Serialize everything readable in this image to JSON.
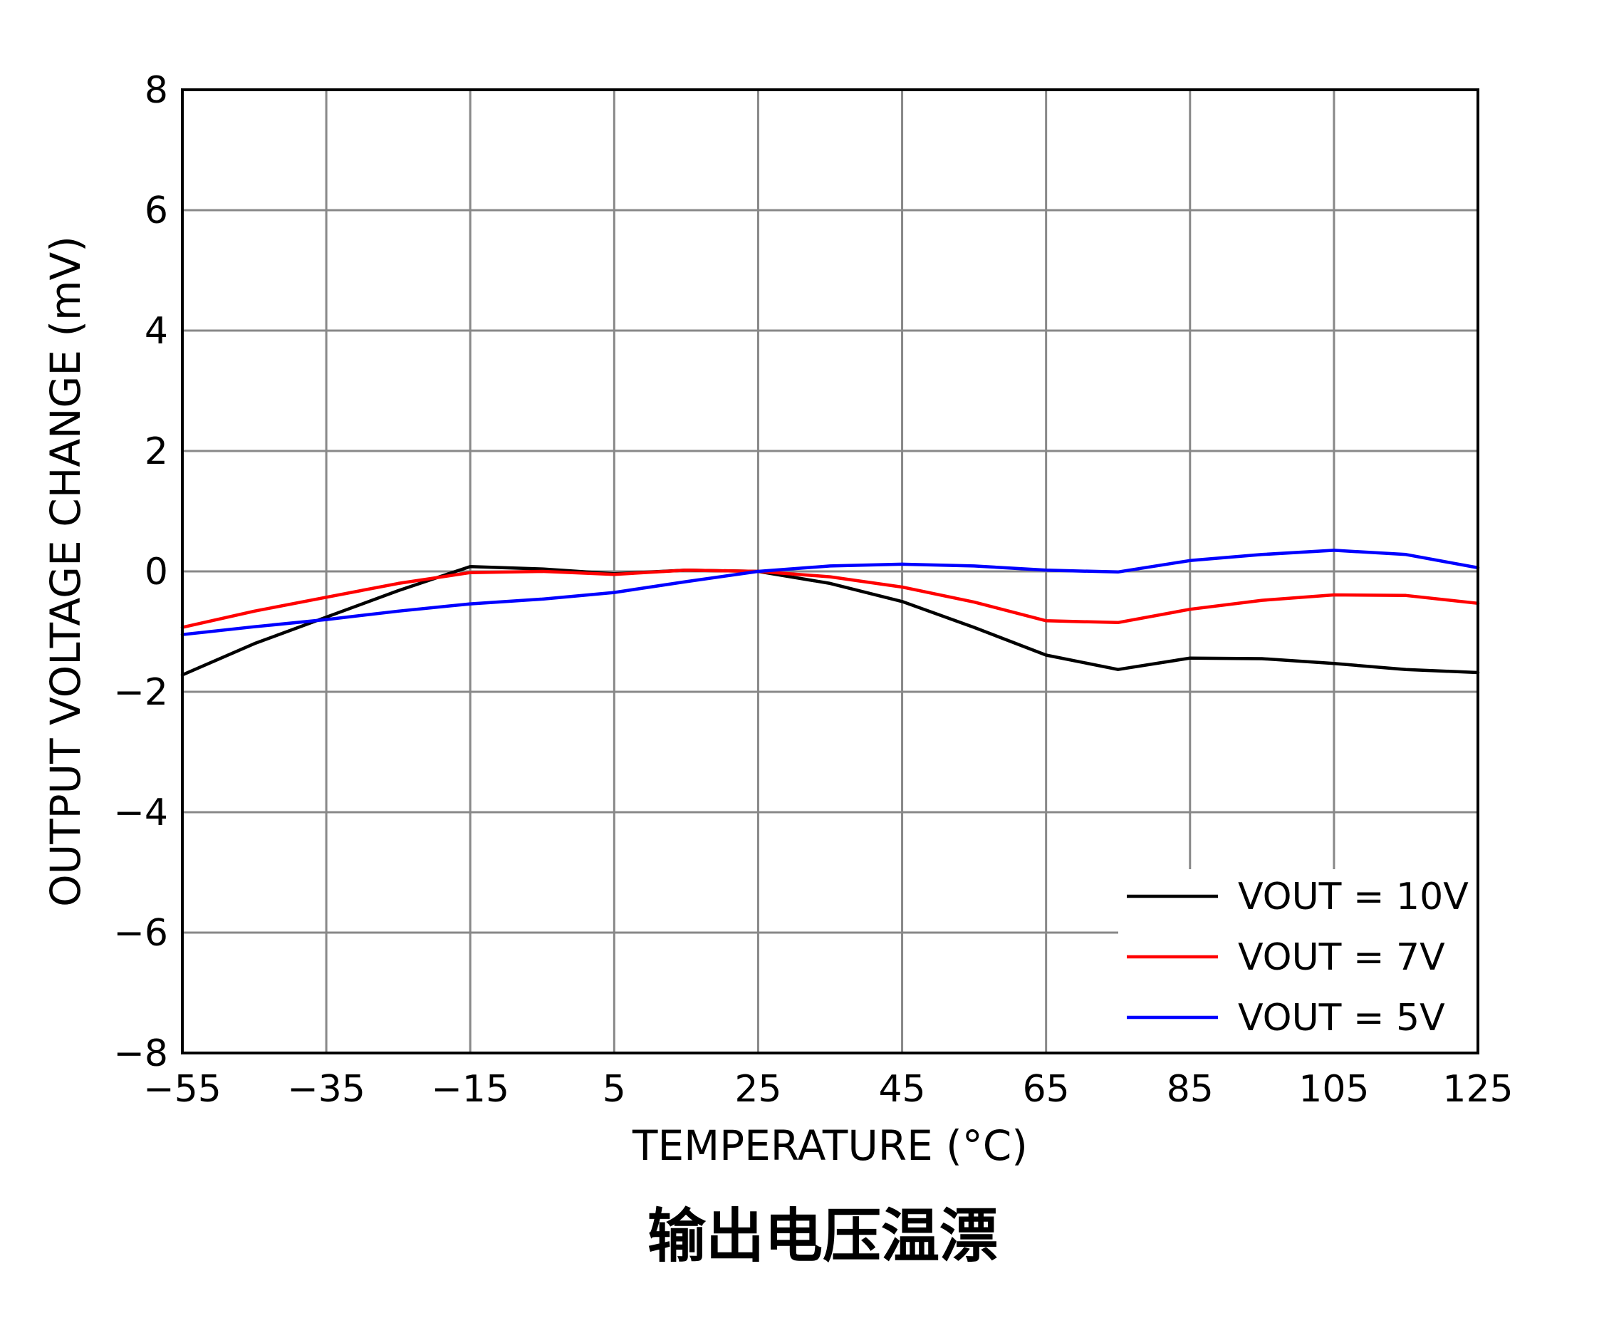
{
  "chart_data": {
    "type": "line",
    "title": "",
    "caption": "输出电压温漂",
    "xlabel": "TEMPERATURE (°C)",
    "ylabel": "OUTPUT VOLTAGE CHANGE (mV)",
    "xlim": [
      -55,
      125
    ],
    "ylim": [
      -8,
      8
    ],
    "xticks": [
      -55,
      -35,
      -15,
      5,
      25,
      45,
      65,
      85,
      105,
      125
    ],
    "yticks": [
      -8,
      -6,
      -4,
      -2,
      0,
      2,
      4,
      6,
      8
    ],
    "xtick_labels": [
      "−55",
      "−35",
      "−15",
      "5",
      "25",
      "45",
      "65",
      "85",
      "105",
      "125"
    ],
    "ytick_labels": [
      "−8",
      "−6",
      "−4",
      "−2",
      "0",
      "2",
      "4",
      "6",
      "8"
    ],
    "grid": true,
    "legend_position": "bottom-right",
    "x": [
      -55,
      -45,
      -35,
      -25,
      -15,
      -5,
      5,
      15,
      25,
      35,
      45,
      55,
      65,
      75,
      85,
      95,
      105,
      115,
      125
    ],
    "series": [
      {
        "name": "VOUT = 10V",
        "color": "#000000",
        "values": [
          -1.72,
          -1.2,
          -0.76,
          -0.32,
          0.08,
          0.04,
          -0.04,
          0.02,
          0.0,
          -0.2,
          -0.5,
          -0.93,
          -1.39,
          -1.63,
          -1.44,
          -1.45,
          -1.53,
          -1.63,
          -1.68
        ]
      },
      {
        "name": "VOUT = 7V",
        "color": "#ff0000",
        "values": [
          -0.93,
          -0.66,
          -0.43,
          -0.2,
          -0.02,
          0.0,
          -0.05,
          0.02,
          0.0,
          -0.09,
          -0.26,
          -0.51,
          -0.82,
          -0.85,
          -0.63,
          -0.48,
          -0.39,
          -0.4,
          -0.53
        ]
      },
      {
        "name": "VOUT = 5V",
        "color": "#0000ff",
        "values": [
          -1.05,
          -0.92,
          -0.8,
          -0.66,
          -0.54,
          -0.46,
          -0.35,
          -0.17,
          0.0,
          0.09,
          0.12,
          0.09,
          0.02,
          -0.01,
          0.18,
          0.28,
          0.35,
          0.28,
          0.06
        ]
      }
    ]
  }
}
